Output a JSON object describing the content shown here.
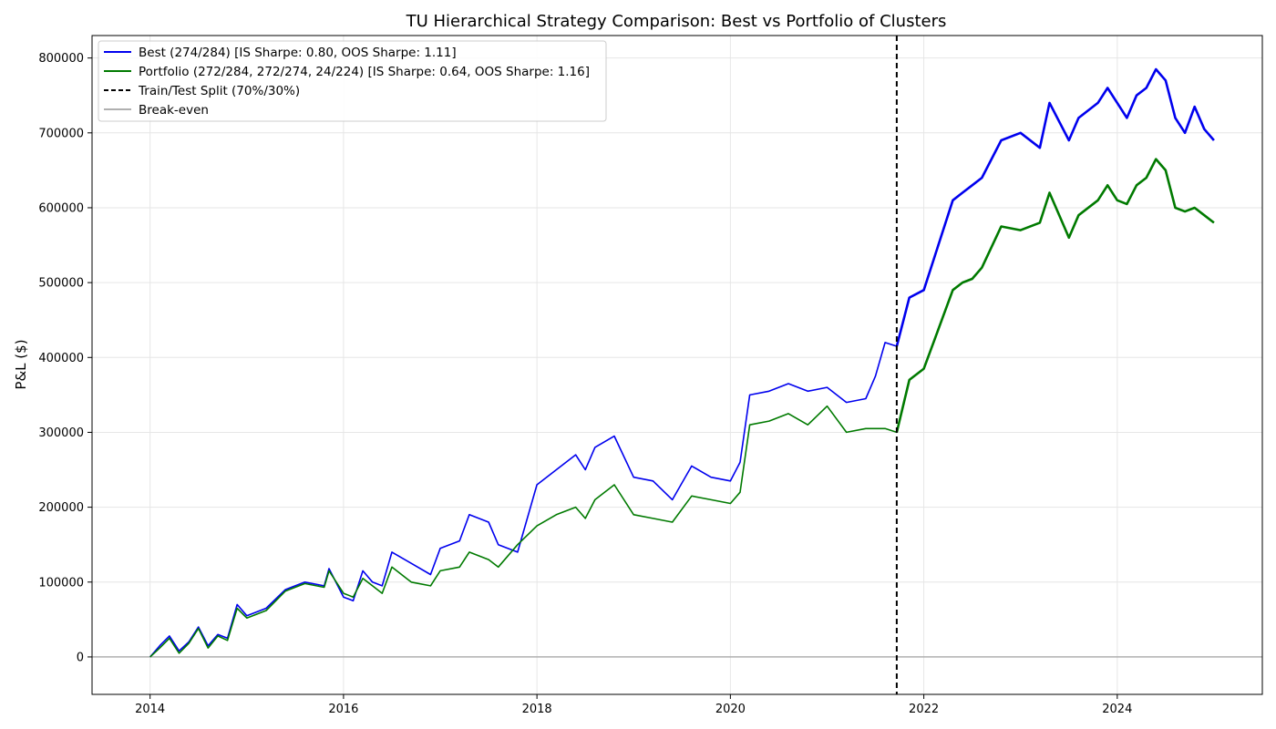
{
  "chart_data": {
    "type": "line",
    "title": "TU Hierarchical Strategy Comparison: Best vs Portfolio of Clusters",
    "xlabel": "",
    "ylabel": "P&L ($)",
    "xlim": [
      2013.4,
      2025.5
    ],
    "ylim": [
      -50000,
      830000
    ],
    "x_ticks": [
      2014,
      2016,
      2018,
      2020,
      2022,
      2024
    ],
    "y_ticks": [
      0,
      100000,
      200000,
      300000,
      400000,
      500000,
      600000,
      700000,
      800000
    ],
    "grid": true,
    "legend_placement": "top-left",
    "split_x": 2021.72,
    "breakeven_y": 0,
    "series": [
      {
        "name": "Best (274/284) [IS Sharpe: 0.80, OOS Sharpe: 1.11]",
        "color": "#0000ee",
        "x": [
          2014.0,
          2014.1,
          2014.2,
          2014.3,
          2014.4,
          2014.5,
          2014.6,
          2014.7,
          2014.8,
          2014.9,
          2015.0,
          2015.2,
          2015.4,
          2015.6,
          2015.8,
          2015.85,
          2016.0,
          2016.1,
          2016.2,
          2016.3,
          2016.4,
          2016.5,
          2016.7,
          2016.9,
          2017.0,
          2017.2,
          2017.3,
          2017.5,
          2017.6,
          2017.8,
          2018.0,
          2018.2,
          2018.4,
          2018.5,
          2018.6,
          2018.8,
          2019.0,
          2019.2,
          2019.4,
          2019.6,
          2019.8,
          2020.0,
          2020.1,
          2020.2,
          2020.4,
          2020.6,
          2020.8,
          2021.0,
          2021.2,
          2021.4,
          2021.5,
          2021.6,
          2021.72,
          2021.85,
          2022.0,
          2022.1,
          2022.2,
          2022.3,
          2022.4,
          2022.5,
          2022.6,
          2022.8,
          2023.0,
          2023.2,
          2023.3,
          2023.5,
          2023.6,
          2023.8,
          2023.9,
          2024.0,
          2024.1,
          2024.2,
          2024.3,
          2024.4,
          2024.5,
          2024.6,
          2024.7,
          2024.8,
          2024.9,
          2025.0
        ],
        "values": [
          0,
          15000,
          28000,
          8000,
          20000,
          40000,
          15000,
          30000,
          25000,
          70000,
          55000,
          65000,
          90000,
          100000,
          95000,
          118000,
          80000,
          75000,
          115000,
          100000,
          95000,
          140000,
          125000,
          110000,
          145000,
          155000,
          190000,
          180000,
          150000,
          140000,
          230000,
          250000,
          270000,
          250000,
          280000,
          295000,
          240000,
          235000,
          210000,
          255000,
          240000,
          235000,
          260000,
          350000,
          355000,
          365000,
          355000,
          360000,
          340000,
          345000,
          375000,
          420000,
          415000,
          480000,
          490000,
          530000,
          570000,
          610000,
          620000,
          630000,
          640000,
          690000,
          700000,
          680000,
          740000,
          690000,
          720000,
          740000,
          760000,
          740000,
          720000,
          750000,
          760000,
          785000,
          770000,
          720000,
          700000,
          735000,
          705000,
          690000
        ]
      },
      {
        "name": "Portfolio (272/284, 272/274, 24/224) [IS Sharpe: 0.64, OOS Sharpe: 1.16]",
        "color": "#007a00",
        "x": [
          2014.0,
          2014.1,
          2014.2,
          2014.3,
          2014.4,
          2014.5,
          2014.6,
          2014.7,
          2014.8,
          2014.9,
          2015.0,
          2015.2,
          2015.4,
          2015.6,
          2015.8,
          2015.85,
          2016.0,
          2016.1,
          2016.2,
          2016.3,
          2016.4,
          2016.5,
          2016.7,
          2016.9,
          2017.0,
          2017.2,
          2017.3,
          2017.5,
          2017.6,
          2017.8,
          2018.0,
          2018.2,
          2018.4,
          2018.5,
          2018.6,
          2018.8,
          2019.0,
          2019.2,
          2019.4,
          2019.6,
          2019.8,
          2020.0,
          2020.1,
          2020.2,
          2020.4,
          2020.6,
          2020.8,
          2021.0,
          2021.2,
          2021.4,
          2021.5,
          2021.6,
          2021.72,
          2021.85,
          2022.0,
          2022.1,
          2022.2,
          2022.3,
          2022.4,
          2022.5,
          2022.6,
          2022.8,
          2023.0,
          2023.2,
          2023.3,
          2023.5,
          2023.6,
          2023.8,
          2023.9,
          2024.0,
          2024.1,
          2024.2,
          2024.3,
          2024.4,
          2024.5,
          2024.6,
          2024.7,
          2024.8,
          2024.9,
          2025.0
        ],
        "values": [
          0,
          12000,
          25000,
          5000,
          18000,
          38000,
          12000,
          28000,
          22000,
          65000,
          52000,
          62000,
          88000,
          98000,
          93000,
          115000,
          85000,
          80000,
          105000,
          95000,
          85000,
          120000,
          100000,
          95000,
          115000,
          120000,
          140000,
          130000,
          120000,
          150000,
          175000,
          190000,
          200000,
          185000,
          210000,
          230000,
          190000,
          185000,
          180000,
          215000,
          210000,
          205000,
          220000,
          310000,
          315000,
          325000,
          310000,
          335000,
          300000,
          305000,
          305000,
          305000,
          300000,
          370000,
          385000,
          420000,
          455000,
          490000,
          500000,
          505000,
          520000,
          575000,
          570000,
          580000,
          620000,
          560000,
          590000,
          610000,
          630000,
          610000,
          605000,
          630000,
          640000,
          665000,
          650000,
          600000,
          595000,
          600000,
          590000,
          580000
        ]
      }
    ],
    "legend": [
      {
        "label": "Best (274/284) [IS Sharpe: 0.80, OOS Sharpe: 1.11]",
        "color": "#0000ee",
        "style": "solid"
      },
      {
        "label": "Portfolio (272/284, 272/274, 24/224) [IS Sharpe: 0.64, OOS Sharpe: 1.16]",
        "color": "#007a00",
        "style": "solid"
      },
      {
        "label": "Train/Test Split (70%/30%)",
        "color": "#000000",
        "style": "dashed"
      },
      {
        "label": "Break-even",
        "color": "#b0b0b0",
        "style": "solid"
      }
    ]
  }
}
